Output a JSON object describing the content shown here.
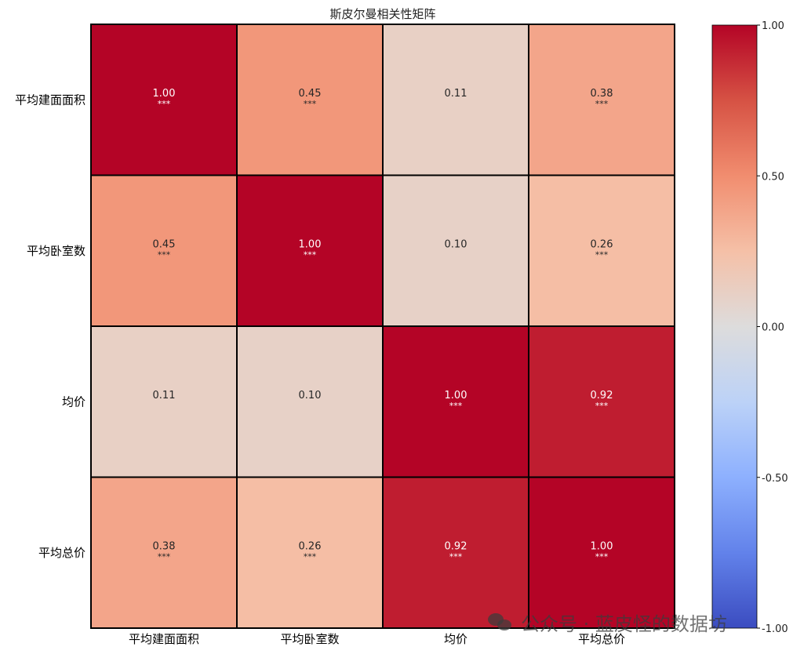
{
  "chart_data": {
    "type": "heatmap",
    "title": "斯皮尔曼相关性矩阵",
    "row_labels": [
      "平均建面面积",
      "平均卧室数",
      "均价",
      "平均总价"
    ],
    "col_labels": [
      "平均建面面积",
      "平均卧室数",
      "均价",
      "平均总价"
    ],
    "values": [
      [
        1.0,
        0.45,
        0.11,
        0.38
      ],
      [
        0.45,
        1.0,
        0.1,
        0.26
      ],
      [
        0.11,
        0.1,
        1.0,
        0.92
      ],
      [
        0.38,
        0.26,
        0.92,
        1.0
      ]
    ],
    "significance": [
      [
        "***",
        "***",
        "",
        "***"
      ],
      [
        "***",
        "***",
        "",
        "***"
      ],
      [
        "",
        "",
        "***",
        "***"
      ],
      [
        "***",
        "***",
        "***",
        "***"
      ]
    ],
    "colormap": "coolwarm",
    "vmin": -1.0,
    "vmax": 1.0,
    "colorbar_ticks": [
      "1.00",
      "0.50",
      "0.00",
      "-0.50",
      "-1.00"
    ]
  },
  "watermark": {
    "text": "公众号 · 蓝皮怪的数据坊",
    "icon": "wechat-icon"
  }
}
